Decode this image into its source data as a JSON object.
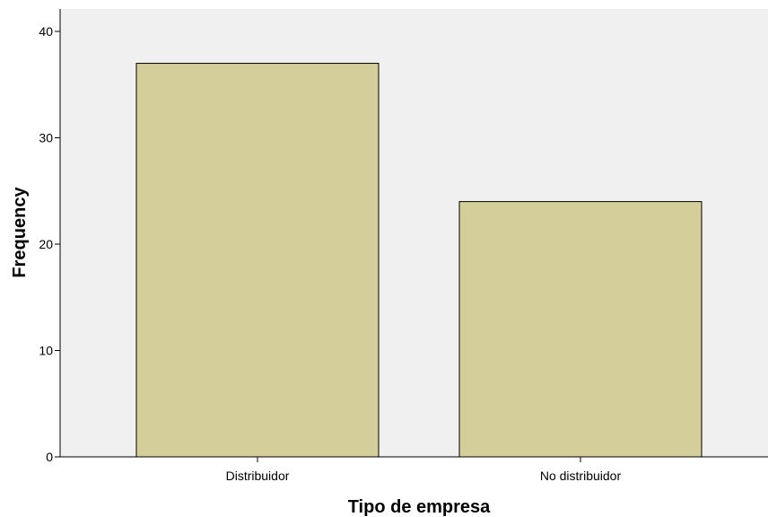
{
  "chart_data": {
    "type": "bar",
    "categories": [
      "Distribuidor",
      "No distribuidor"
    ],
    "values": [
      37,
      24
    ],
    "title": "",
    "xlabel": "Tipo de empresa",
    "ylabel": "Frequency",
    "ylim": [
      0,
      40
    ],
    "yticks": [
      0,
      10,
      20,
      30,
      40
    ],
    "ytick_labels": [
      "0",
      "10",
      "20",
      "30",
      "40"
    ],
    "grid": false,
    "legend": "none",
    "colors": {
      "plot_background": "#f0f0f0",
      "bar_fill": "#d3ce9a",
      "bar_stroke": "#000000",
      "axis": "#000000"
    }
  }
}
